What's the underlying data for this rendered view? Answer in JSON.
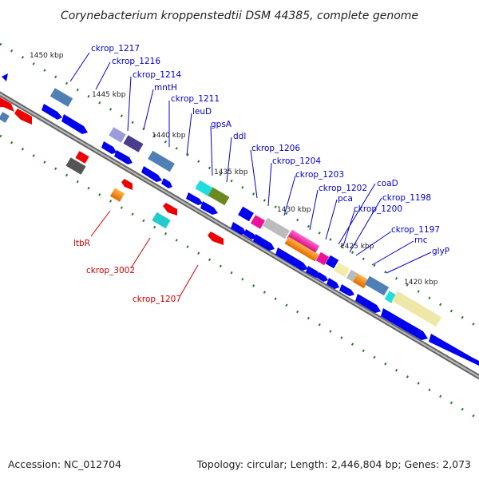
{
  "title": "Corynebacterium kroppenstedtii DSM 44385, complete genome",
  "footer": {
    "accession": "Accession: NC_012704",
    "topology": "Topology: circular; Length: 2,446,804 bp; Genes: 2,073"
  },
  "colors": {
    "forward_cds": "#0000ee",
    "reverse_cds": "#ee0000",
    "backbone": "#888888",
    "tick": "#2a7a2a",
    "label_blue": "#0000cc",
    "label_red": "#cc0000"
  },
  "ticks": [
    "1450 kbp",
    "1445 kbp",
    "1440 kbp",
    "1435 kbp",
    "1430 kbp",
    "1425 kbp",
    "1420 kbp"
  ],
  "labels_blue": [
    "ckrop_1217",
    "ckrop_1216",
    "ckrop_1214",
    "mntH",
    "ckrop_1211",
    "leuD",
    "gpsA",
    "ddl",
    "ckrop_1206",
    "ckrop_1204",
    "ckrop_1203",
    "ckrop_1202",
    "pca",
    "coaD",
    "ckrop_1198",
    "ckrop_1200",
    "ckrop_1197",
    "rnc",
    "glyP"
  ],
  "labels_red": [
    "ltbR",
    "ckrop_3002",
    "ckrop_1207"
  ]
}
